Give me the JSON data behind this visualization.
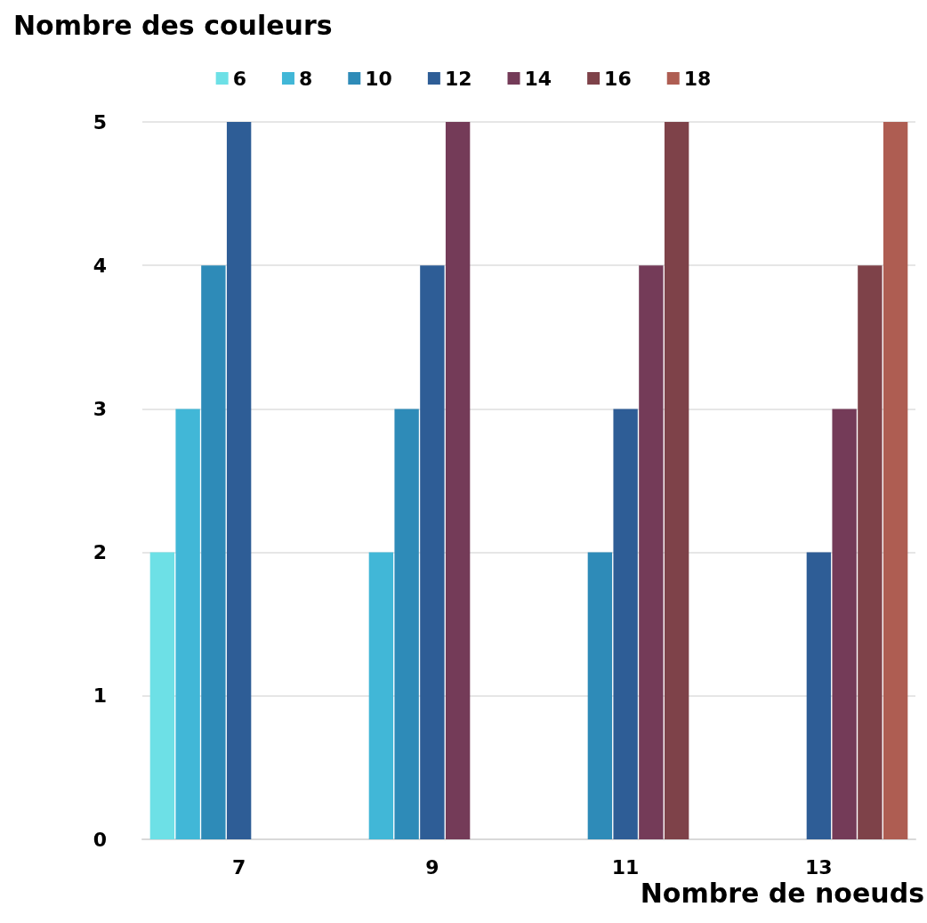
{
  "chart_data": {
    "type": "bar",
    "title": "Nombre des couleurs",
    "xlabel": "Nombre de noeuds",
    "categories": [
      "7",
      "9",
      "11",
      "13"
    ],
    "series": [
      {
        "name": "6",
        "color": "#6de0e6",
        "values": [
          2,
          null,
          null,
          null
        ]
      },
      {
        "name": "8",
        "color": "#41b7d7",
        "values": [
          3,
          2,
          null,
          null
        ]
      },
      {
        "name": "10",
        "color": "#2e8bb8",
        "values": [
          4,
          3,
          2,
          null
        ]
      },
      {
        "name": "12",
        "color": "#2e5d96",
        "values": [
          5,
          4,
          3,
          2
        ]
      },
      {
        "name": "14",
        "color": "#743b58",
        "values": [
          null,
          5,
          4,
          3
        ]
      },
      {
        "name": "16",
        "color": "#7e4249",
        "values": [
          null,
          null,
          5,
          4
        ]
      },
      {
        "name": "18",
        "color": "#ae5d52",
        "values": [
          null,
          null,
          null,
          5
        ]
      }
    ],
    "ylim": [
      0,
      5
    ],
    "yticks": [
      0,
      1,
      2,
      3,
      4,
      5
    ],
    "grid": "y",
    "legend": "top"
  }
}
